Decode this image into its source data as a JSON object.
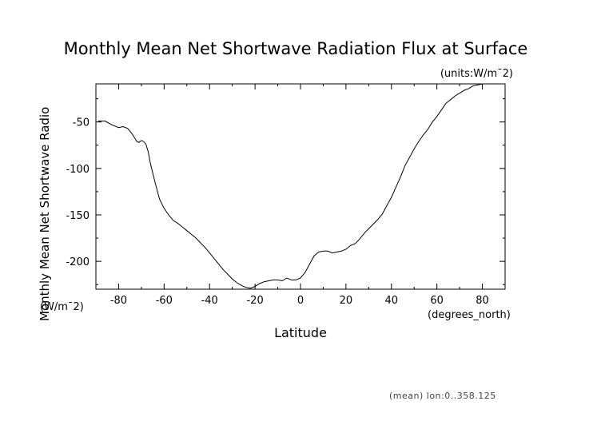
{
  "chart_data": {
    "type": "line",
    "title": "Monthly Mean Net Shortwave Radiation Flux at Surface",
    "units_label": "(units:W/m¯2)",
    "ylabel": "Monthly Mean Net Shortwave Radio",
    "yunit": "(W/m¯2)",
    "xlabel": "Latitude",
    "xunit": "(degrees_north)",
    "footnote": "(mean) lon:0..358.125",
    "xlim": [
      -90,
      90
    ],
    "ylim": [
      -230,
      -9
    ],
    "x_ticks": [
      -80,
      -60,
      -40,
      -20,
      0,
      20,
      40,
      60,
      80
    ],
    "y_ticks": [
      -200,
      -150,
      -100,
      -50
    ],
    "grid": false,
    "series": [
      {
        "x": [
          -89,
          -86,
          -83,
          -80,
          -78,
          -76,
          -74,
          -72,
          -71,
          -70,
          -69,
          -68,
          -67,
          -66,
          -64,
          -62,
          -60,
          -58,
          -56,
          -54,
          -52,
          -50,
          -48,
          -46,
          -44,
          -42,
          -40,
          -38,
          -36,
          -34,
          -32,
          -30,
          -28,
          -26,
          -24,
          -22,
          -20,
          -18,
          -16,
          -14,
          -12,
          -10,
          -8,
          -6,
          -4,
          -2,
          0,
          2,
          4,
          6,
          8,
          10,
          12,
          14,
          16,
          18,
          20,
          22,
          24,
          26,
          28,
          30,
          32,
          34,
          36,
          38,
          40,
          42,
          44,
          46,
          48,
          50,
          52,
          54,
          56,
          58,
          60,
          62,
          64,
          66,
          68,
          70,
          72,
          74,
          76,
          78,
          80,
          82,
          84,
          86,
          88
        ],
        "y": [
          -49,
          -49,
          -53,
          -56,
          -55,
          -57,
          -63,
          -71,
          -72,
          -70,
          -71,
          -74,
          -82,
          -95,
          -115,
          -133,
          -143,
          -150,
          -156,
          -159,
          -163,
          -167,
          -171,
          -175,
          -180,
          -185,
          -191,
          -197,
          -203,
          -209,
          -214,
          -219,
          -223,
          -226,
          -228,
          -229,
          -227,
          -224,
          -222,
          -221,
          -220,
          -220,
          -221,
          -218,
          -220,
          -220,
          -218,
          -212,
          -203,
          -194,
          -190,
          -189,
          -189,
          -191,
          -190,
          -189,
          -187,
          -183,
          -181,
          -176,
          -170,
          -165,
          -160,
          -155,
          -149,
          -140,
          -131,
          -120,
          -109,
          -97,
          -88,
          -79,
          -71,
          -64,
          -58,
          -50,
          -44,
          -37,
          -30,
          -26,
          -22,
          -19,
          -16,
          -14,
          -11,
          -10,
          -9,
          -9,
          -9,
          -9,
          -9
        ]
      }
    ]
  }
}
